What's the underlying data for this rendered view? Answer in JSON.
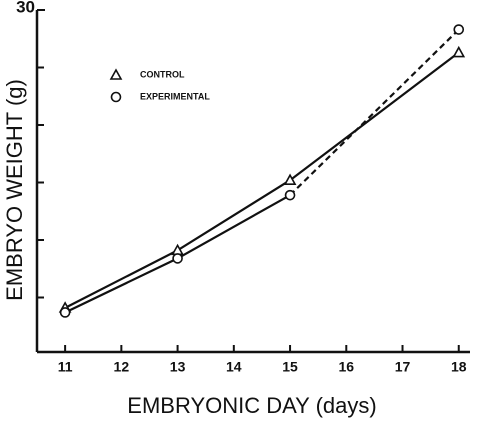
{
  "chart_data": {
    "type": "line",
    "x_label": "EMBRYONIC DAY (days)",
    "y_label": "EMBRYO WEIGHT (g)",
    "x": [
      11,
      13,
      15,
      18
    ],
    "xlim": [
      10.5,
      18.2
    ],
    "xticks": [
      11,
      12,
      13,
      14,
      15,
      16,
      17,
      18
    ],
    "ylim": [
      0,
      30
    ],
    "yticks": [
      30
    ],
    "y_minor_ticks": [
      5,
      10,
      15,
      20,
      25
    ],
    "series": [
      {
        "name": "CONTROL",
        "color": "#111111",
        "marker": "triangle",
        "values": [
          4.1,
          9.1,
          15.2,
          26.3
        ]
      },
      {
        "name": "EXPERIMENTAL",
        "color": "#111111",
        "marker": "circle",
        "values": [
          3.7,
          8.4,
          13.9,
          28.3
        ],
        "dashed_from_index": 2
      }
    ]
  }
}
